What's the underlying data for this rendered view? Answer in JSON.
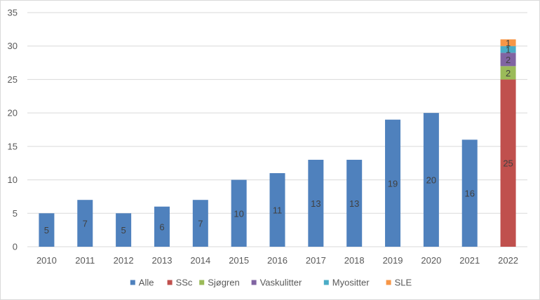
{
  "chart_data": {
    "type": "bar",
    "stacked": true,
    "categories": [
      "2010",
      "2011",
      "2012",
      "2013",
      "2014",
      "2015",
      "2016",
      "2017",
      "2018",
      "2019",
      "2020",
      "2021",
      "2022"
    ],
    "series": [
      {
        "name": "Alle",
        "color": "#4f81bd",
        "values": [
          5,
          7,
          5,
          6,
          7,
          10,
          11,
          13,
          13,
          19,
          20,
          16,
          null
        ]
      },
      {
        "name": "SSc",
        "color": "#c0504d",
        "values": [
          null,
          null,
          null,
          null,
          null,
          null,
          null,
          null,
          null,
          null,
          null,
          null,
          25
        ]
      },
      {
        "name": "Sjøgren",
        "color": "#9bbb59",
        "values": [
          null,
          null,
          null,
          null,
          null,
          null,
          null,
          null,
          null,
          null,
          null,
          null,
          2
        ]
      },
      {
        "name": "Vaskulitter",
        "color": "#8064a2",
        "values": [
          null,
          null,
          null,
          null,
          null,
          null,
          null,
          null,
          null,
          null,
          null,
          null,
          2
        ]
      },
      {
        "name": "Myositter",
        "color": "#4bacc6",
        "values": [
          null,
          null,
          null,
          null,
          null,
          null,
          null,
          null,
          null,
          null,
          null,
          null,
          1
        ]
      },
      {
        "name": "SLE",
        "color": "#f79646",
        "values": [
          null,
          null,
          null,
          null,
          null,
          null,
          null,
          null,
          null,
          null,
          null,
          null,
          1
        ]
      }
    ],
    "data_labels": true,
    "ylim": [
      0,
      35
    ],
    "yticks": [
      "0",
      "5",
      "10",
      "15",
      "20",
      "25",
      "30",
      "35"
    ],
    "grid": true,
    "legend_position": "bottom",
    "title": "",
    "xlabel": "",
    "ylabel": ""
  }
}
